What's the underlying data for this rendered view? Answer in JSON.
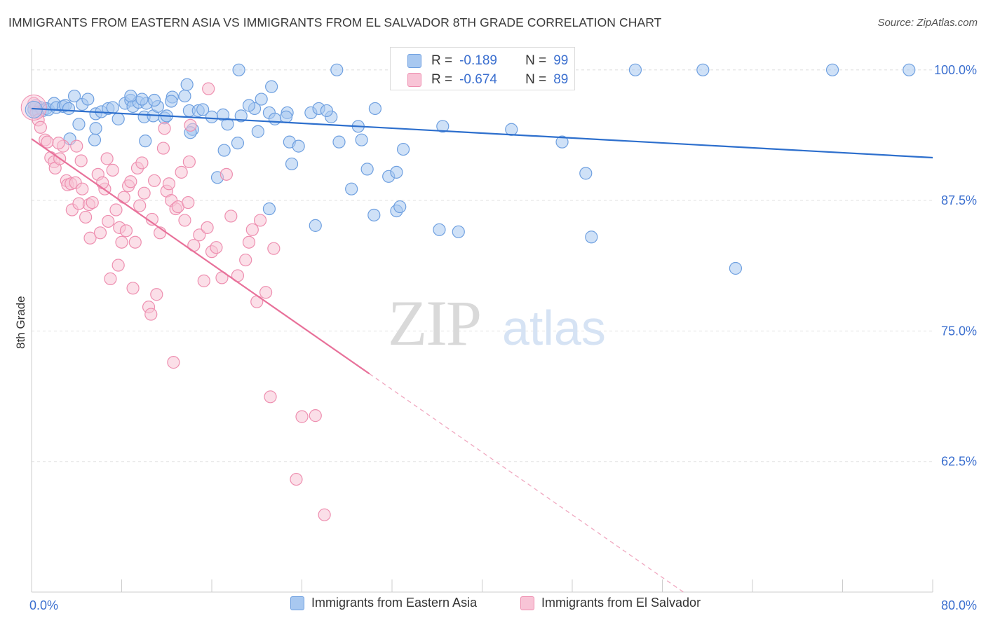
{
  "title": "IMMIGRANTS FROM EASTERN ASIA VS IMMIGRANTS FROM EL SALVADOR 8TH GRADE CORRELATION CHART",
  "source": "Source: ZipAtlas.com",
  "watermark": {
    "zip": "ZIP",
    "atlas": "atlas"
  },
  "stats": [
    {
      "r_label": "R =",
      "r_value": "-0.189",
      "n_label": "N =",
      "n_value": "99",
      "color": "#a8c8f0",
      "border": "#6fa0e0"
    },
    {
      "r_label": "R =",
      "r_value": "-0.674",
      "n_label": "N =",
      "n_value": "89",
      "color": "#f8c4d6",
      "border": "#ee8fb0"
    }
  ],
  "legend": [
    {
      "label": "Immigrants from Eastern Asia",
      "color": "#a8c8f0",
      "border": "#6fa0e0"
    },
    {
      "label": "Immigrants from El Salvador",
      "color": "#f8c4d6",
      "border": "#ee8fb0"
    }
  ],
  "chart_data": {
    "type": "scatter",
    "title": "IMMIGRANTS FROM EASTERN ASIA VS IMMIGRANTS FROM EL SALVADOR 8TH GRADE CORRELATION CHART",
    "xlabel": "",
    "ylabel": "8th Grade",
    "xlim": [
      0,
      80
    ],
    "ylim": [
      50,
      102
    ],
    "x_tick_labels": [
      "0.0%",
      "80.0%"
    ],
    "y_ticks": [
      62.5,
      75.0,
      87.5,
      100.0
    ],
    "y_tick_labels": [
      "62.5%",
      "75.0%",
      "87.5%",
      "100.0%"
    ],
    "grid": true,
    "series": [
      {
        "name": "Immigrants from Eastern Asia",
        "color": "#6fa0e0",
        "fill": "#a8c8f0",
        "trend": {
          "x": [
            0,
            80
          ],
          "y": [
            96.3,
            91.6
          ],
          "color": "#2d6fcd"
        },
        "points": [
          [
            0.2,
            96.2
          ],
          [
            0.4,
            96.6
          ],
          [
            0.6,
            96.0
          ],
          [
            0.8,
            96.4
          ],
          [
            1.0,
            96.1
          ],
          [
            1.3,
            96.3
          ],
          [
            1.5,
            96.2
          ],
          [
            2.0,
            96.8
          ],
          [
            2.2,
            96.4
          ],
          [
            2.8,
            96.5
          ],
          [
            3.0,
            96.6
          ],
          [
            3.3,
            96.3
          ],
          [
            3.8,
            97.5
          ],
          [
            4.5,
            96.7
          ],
          [
            5.0,
            97.2
          ],
          [
            5.7,
            95.8
          ],
          [
            6.2,
            96.0
          ],
          [
            6.8,
            96.3
          ],
          [
            7.2,
            96.4
          ],
          [
            7.7,
            95.3
          ],
          [
            8.3,
            96.8
          ],
          [
            8.8,
            97.1
          ],
          [
            9.0,
            96.5
          ],
          [
            9.5,
            96.9
          ],
          [
            10.0,
            95.5
          ],
          [
            10.2,
            96.8
          ],
          [
            10.8,
            95.6
          ],
          [
            11.2,
            96.5
          ],
          [
            11.8,
            95.4
          ],
          [
            12.0,
            95.6
          ],
          [
            12.5,
            97.4
          ],
          [
            13.6,
            97.5
          ],
          [
            13.8,
            98.6
          ],
          [
            14.0,
            96.1
          ],
          [
            14.8,
            96.1
          ],
          [
            15.2,
            96.2
          ],
          [
            16.0,
            95.5
          ],
          [
            17.0,
            95.7
          ],
          [
            18.6,
            95.6
          ],
          [
            19.8,
            96.3
          ],
          [
            20.4,
            97.2
          ],
          [
            21.1,
            95.9
          ],
          [
            21.6,
            95.3
          ],
          [
            22.7,
            95.9
          ],
          [
            24.8,
            95.9
          ],
          [
            25.5,
            96.3
          ],
          [
            26.6,
            95.5
          ],
          [
            29.0,
            94.6
          ],
          [
            36.5,
            94.6
          ],
          [
            42.6,
            94.3
          ],
          [
            3.4,
            93.4
          ],
          [
            5.6,
            93.3
          ],
          [
            10.1,
            93.2
          ],
          [
            14.3,
            94.3
          ],
          [
            17.1,
            92.3
          ],
          [
            18.3,
            93.0
          ],
          [
            22.9,
            93.1
          ],
          [
            23.7,
            92.7
          ],
          [
            27.3,
            93.1
          ],
          [
            29.3,
            93.3
          ],
          [
            33.0,
            92.4
          ],
          [
            47.1,
            93.1
          ],
          [
            23.1,
            91.0
          ],
          [
            29.8,
            90.5
          ],
          [
            31.7,
            89.8
          ],
          [
            32.4,
            90.2
          ],
          [
            16.5,
            89.7
          ],
          [
            28.4,
            88.6
          ],
          [
            49.2,
            90.1
          ],
          [
            21.1,
            86.7
          ],
          [
            30.4,
            86.1
          ],
          [
            32.4,
            86.5
          ],
          [
            32.7,
            86.9
          ],
          [
            25.2,
            85.1
          ],
          [
            36.2,
            84.7
          ],
          [
            37.9,
            84.5
          ],
          [
            49.7,
            84.0
          ],
          [
            62.5,
            81.0
          ],
          [
            4.2,
            94.8
          ],
          [
            5.7,
            94.4
          ],
          [
            14.1,
            94.0
          ],
          [
            17.4,
            94.8
          ],
          [
            20.1,
            94.1
          ],
          [
            22.6,
            95.5
          ],
          [
            26.2,
            96.1
          ],
          [
            30.5,
            96.3
          ],
          [
            8.8,
            97.5
          ],
          [
            9.8,
            97.2
          ],
          [
            10.9,
            97.1
          ],
          [
            12.4,
            97.0
          ],
          [
            18.4,
            100.0
          ],
          [
            27.1,
            100.0
          ],
          [
            36.9,
            100.0
          ],
          [
            53.6,
            100.0
          ],
          [
            59.6,
            100.0
          ],
          [
            71.1,
            100.0
          ],
          [
            77.9,
            100.0
          ],
          [
            21.3,
            98.4
          ],
          [
            19.3,
            96.6
          ]
        ]
      },
      {
        "name": "Immigrants from El Salvador",
        "color": "#ee8fb0",
        "fill": "#f8c4d6",
        "trend": {
          "x": [
            0,
            30.0
          ],
          "y": [
            93.4,
            70.9
          ],
          "color": "#e8719a"
        },
        "trend_dashed": {
          "x": [
            30.0,
            58.0
          ],
          "y": [
            70.9,
            49.9
          ],
          "color": "#f0a8c0"
        },
        "points": [
          [
            0.2,
            96.8
          ],
          [
            0.4,
            95.9
          ],
          [
            0.6,
            95.2
          ],
          [
            0.8,
            94.5
          ],
          [
            1.2,
            93.3
          ],
          [
            1.4,
            93.1
          ],
          [
            1.7,
            91.6
          ],
          [
            2.0,
            91.2
          ],
          [
            2.1,
            90.6
          ],
          [
            2.5,
            91.5
          ],
          [
            2.8,
            92.7
          ],
          [
            3.1,
            89.4
          ],
          [
            3.2,
            89.0
          ],
          [
            3.5,
            89.1
          ],
          [
            3.6,
            86.6
          ],
          [
            3.9,
            89.2
          ],
          [
            4.2,
            87.2
          ],
          [
            4.4,
            91.3
          ],
          [
            4.5,
            88.6
          ],
          [
            4.8,
            85.9
          ],
          [
            5.1,
            87.1
          ],
          [
            5.2,
            83.9
          ],
          [
            5.4,
            87.3
          ],
          [
            5.9,
            90.0
          ],
          [
            6.1,
            84.4
          ],
          [
            6.5,
            88.6
          ],
          [
            6.7,
            91.5
          ],
          [
            6.8,
            85.5
          ],
          [
            7.0,
            80.0
          ],
          [
            7.2,
            90.4
          ],
          [
            7.5,
            86.6
          ],
          [
            7.7,
            81.3
          ],
          [
            7.8,
            84.9
          ],
          [
            8.0,
            83.5
          ],
          [
            8.2,
            87.8
          ],
          [
            8.4,
            84.6
          ],
          [
            8.6,
            88.9
          ],
          [
            8.8,
            89.3
          ],
          [
            9.0,
            79.1
          ],
          [
            9.2,
            83.5
          ],
          [
            9.4,
            90.6
          ],
          [
            9.6,
            87.0
          ],
          [
            9.8,
            91.1
          ],
          [
            10.0,
            88.2
          ],
          [
            10.4,
            77.3
          ],
          [
            10.6,
            76.6
          ],
          [
            10.7,
            85.7
          ],
          [
            10.9,
            89.4
          ],
          [
            11.1,
            78.5
          ],
          [
            11.4,
            84.4
          ],
          [
            11.7,
            92.5
          ],
          [
            12.0,
            88.4
          ],
          [
            12.2,
            89.1
          ],
          [
            12.4,
            87.5
          ],
          [
            12.6,
            72.0
          ],
          [
            12.8,
            86.7
          ],
          [
            13.0,
            86.9
          ],
          [
            13.3,
            90.2
          ],
          [
            13.6,
            85.6
          ],
          [
            14.0,
            91.2
          ],
          [
            14.4,
            83.2
          ],
          [
            14.9,
            84.2
          ],
          [
            15.3,
            79.8
          ],
          [
            15.6,
            84.9
          ],
          [
            16.0,
            82.6
          ],
          [
            16.4,
            83.0
          ],
          [
            16.9,
            80.1
          ],
          [
            17.3,
            90.0
          ],
          [
            17.7,
            86.0
          ],
          [
            18.3,
            80.3
          ],
          [
            19.0,
            81.8
          ],
          [
            19.3,
            83.5
          ],
          [
            19.6,
            84.7
          ],
          [
            20.0,
            77.8
          ],
          [
            20.3,
            85.6
          ],
          [
            20.8,
            78.7
          ],
          [
            21.2,
            68.7
          ],
          [
            21.5,
            82.9
          ],
          [
            24.0,
            66.8
          ],
          [
            25.2,
            66.9
          ],
          [
            23.5,
            60.8
          ],
          [
            26.0,
            57.4
          ],
          [
            2.4,
            93.0
          ],
          [
            4.0,
            92.7
          ],
          [
            6.3,
            89.2
          ],
          [
            11.8,
            94.4
          ],
          [
            14.1,
            94.7
          ],
          [
            15.7,
            98.2
          ],
          [
            13.9,
            87.3
          ]
        ]
      }
    ]
  }
}
